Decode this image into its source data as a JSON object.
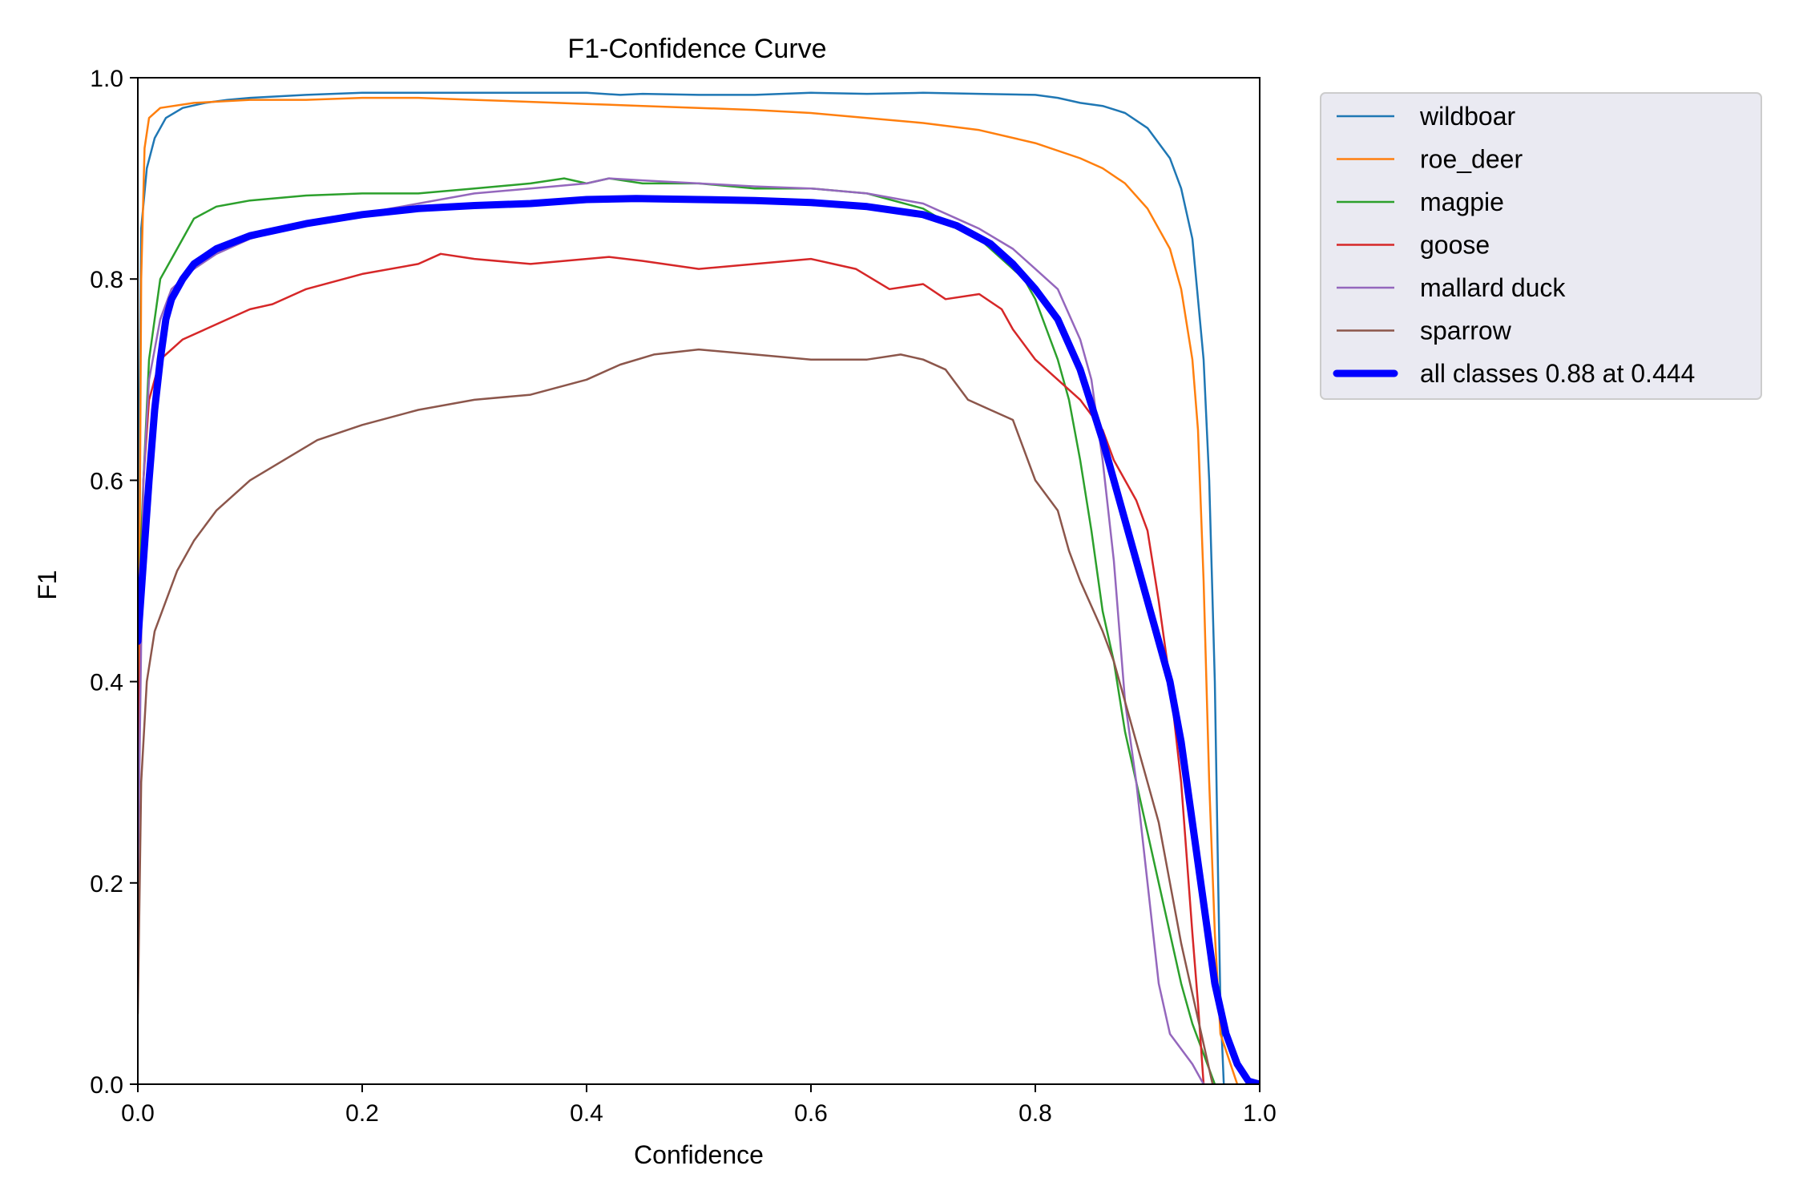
{
  "chart_data": {
    "type": "line",
    "title": "F1-Confidence Curve",
    "xlabel": "Confidence",
    "ylabel": "F1",
    "xlim": [
      0.0,
      1.0
    ],
    "ylim": [
      0.0,
      1.0
    ],
    "xticks": [
      "0.0",
      "0.2",
      "0.4",
      "0.6",
      "0.8",
      "1.0"
    ],
    "yticks": [
      "0.0",
      "0.2",
      "0.4",
      "0.6",
      "0.8",
      "1.0"
    ],
    "grid": false,
    "legend_position": "outside-upper-right",
    "series": [
      {
        "name": "wildboar",
        "color": "#1f77b4",
        "points": [
          [
            0.0,
            0.5
          ],
          [
            0.003,
            0.85
          ],
          [
            0.008,
            0.91
          ],
          [
            0.015,
            0.94
          ],
          [
            0.025,
            0.96
          ],
          [
            0.04,
            0.97
          ],
          [
            0.06,
            0.975
          ],
          [
            0.08,
            0.978
          ],
          [
            0.1,
            0.98
          ],
          [
            0.15,
            0.983
          ],
          [
            0.2,
            0.985
          ],
          [
            0.3,
            0.985
          ],
          [
            0.4,
            0.985
          ],
          [
            0.43,
            0.983
          ],
          [
            0.45,
            0.984
          ],
          [
            0.5,
            0.983
          ],
          [
            0.55,
            0.983
          ],
          [
            0.6,
            0.985
          ],
          [
            0.65,
            0.984
          ],
          [
            0.7,
            0.985
          ],
          [
            0.75,
            0.984
          ],
          [
            0.8,
            0.983
          ],
          [
            0.82,
            0.98
          ],
          [
            0.84,
            0.975
          ],
          [
            0.86,
            0.972
          ],
          [
            0.88,
            0.965
          ],
          [
            0.9,
            0.95
          ],
          [
            0.92,
            0.92
          ],
          [
            0.93,
            0.89
          ],
          [
            0.94,
            0.84
          ],
          [
            0.945,
            0.78
          ],
          [
            0.95,
            0.72
          ],
          [
            0.955,
            0.6
          ],
          [
            0.96,
            0.4
          ],
          [
            0.963,
            0.2
          ],
          [
            0.965,
            0.08
          ],
          [
            0.968,
            0.0
          ]
        ]
      },
      {
        "name": "roe_deer",
        "color": "#ff7f0e",
        "points": [
          [
            0.0,
            0.2
          ],
          [
            0.003,
            0.8
          ],
          [
            0.006,
            0.93
          ],
          [
            0.01,
            0.96
          ],
          [
            0.02,
            0.97
          ],
          [
            0.05,
            0.975
          ],
          [
            0.1,
            0.978
          ],
          [
            0.15,
            0.978
          ],
          [
            0.2,
            0.98
          ],
          [
            0.25,
            0.98
          ],
          [
            0.3,
            0.978
          ],
          [
            0.35,
            0.976
          ],
          [
            0.4,
            0.974
          ],
          [
            0.45,
            0.972
          ],
          [
            0.5,
            0.97
          ],
          [
            0.55,
            0.968
          ],
          [
            0.6,
            0.965
          ],
          [
            0.65,
            0.96
          ],
          [
            0.7,
            0.955
          ],
          [
            0.75,
            0.948
          ],
          [
            0.8,
            0.935
          ],
          [
            0.84,
            0.92
          ],
          [
            0.86,
            0.91
          ],
          [
            0.88,
            0.895
          ],
          [
            0.9,
            0.87
          ],
          [
            0.92,
            0.83
          ],
          [
            0.93,
            0.79
          ],
          [
            0.94,
            0.72
          ],
          [
            0.945,
            0.65
          ],
          [
            0.95,
            0.5
          ],
          [
            0.955,
            0.3
          ],
          [
            0.96,
            0.15
          ],
          [
            0.965,
            0.05
          ],
          [
            0.98,
            0.0
          ]
        ]
      },
      {
        "name": "magpie",
        "color": "#2ca02c",
        "points": [
          [
            0.0,
            0.45
          ],
          [
            0.005,
            0.6
          ],
          [
            0.01,
            0.72
          ],
          [
            0.02,
            0.8
          ],
          [
            0.03,
            0.82
          ],
          [
            0.04,
            0.84
          ],
          [
            0.05,
            0.86
          ],
          [
            0.07,
            0.872
          ],
          [
            0.1,
            0.878
          ],
          [
            0.15,
            0.883
          ],
          [
            0.2,
            0.885
          ],
          [
            0.25,
            0.885
          ],
          [
            0.3,
            0.89
          ],
          [
            0.35,
            0.895
          ],
          [
            0.38,
            0.9
          ],
          [
            0.4,
            0.895
          ],
          [
            0.42,
            0.9
          ],
          [
            0.45,
            0.895
          ],
          [
            0.5,
            0.895
          ],
          [
            0.55,
            0.89
          ],
          [
            0.6,
            0.89
          ],
          [
            0.65,
            0.885
          ],
          [
            0.7,
            0.87
          ],
          [
            0.73,
            0.85
          ],
          [
            0.75,
            0.84
          ],
          [
            0.77,
            0.82
          ],
          [
            0.79,
            0.8
          ],
          [
            0.8,
            0.78
          ],
          [
            0.81,
            0.75
          ],
          [
            0.82,
            0.72
          ],
          [
            0.83,
            0.68
          ],
          [
            0.84,
            0.62
          ],
          [
            0.85,
            0.55
          ],
          [
            0.86,
            0.47
          ],
          [
            0.87,
            0.42
          ],
          [
            0.88,
            0.35
          ],
          [
            0.89,
            0.3
          ],
          [
            0.9,
            0.25
          ],
          [
            0.91,
            0.2
          ],
          [
            0.92,
            0.15
          ],
          [
            0.93,
            0.1
          ],
          [
            0.94,
            0.06
          ],
          [
            0.95,
            0.03
          ],
          [
            0.96,
            0.0
          ]
        ]
      },
      {
        "name": "goose",
        "color": "#d62728",
        "points": [
          [
            0.0,
            0.3
          ],
          [
            0.005,
            0.6
          ],
          [
            0.01,
            0.68
          ],
          [
            0.02,
            0.72
          ],
          [
            0.04,
            0.74
          ],
          [
            0.06,
            0.75
          ],
          [
            0.08,
            0.76
          ],
          [
            0.1,
            0.77
          ],
          [
            0.12,
            0.775
          ],
          [
            0.15,
            0.79
          ],
          [
            0.2,
            0.805
          ],
          [
            0.25,
            0.815
          ],
          [
            0.27,
            0.825
          ],
          [
            0.3,
            0.82
          ],
          [
            0.35,
            0.815
          ],
          [
            0.4,
            0.82
          ],
          [
            0.42,
            0.822
          ],
          [
            0.45,
            0.818
          ],
          [
            0.5,
            0.81
          ],
          [
            0.55,
            0.815
          ],
          [
            0.6,
            0.82
          ],
          [
            0.62,
            0.815
          ],
          [
            0.64,
            0.81
          ],
          [
            0.67,
            0.79
          ],
          [
            0.7,
            0.795
          ],
          [
            0.72,
            0.78
          ],
          [
            0.75,
            0.785
          ],
          [
            0.77,
            0.77
          ],
          [
            0.78,
            0.75
          ],
          [
            0.8,
            0.72
          ],
          [
            0.82,
            0.7
          ],
          [
            0.84,
            0.68
          ],
          [
            0.86,
            0.65
          ],
          [
            0.87,
            0.62
          ],
          [
            0.88,
            0.6
          ],
          [
            0.89,
            0.58
          ],
          [
            0.9,
            0.55
          ],
          [
            0.91,
            0.48
          ],
          [
            0.92,
            0.4
          ],
          [
            0.93,
            0.3
          ],
          [
            0.94,
            0.15
          ],
          [
            0.945,
            0.08
          ],
          [
            0.95,
            0.0
          ]
        ]
      },
      {
        "name": "mallard duck",
        "color": "#9467bd",
        "points": [
          [
            0.0,
            0.2
          ],
          [
            0.005,
            0.6
          ],
          [
            0.01,
            0.7
          ],
          [
            0.02,
            0.76
          ],
          [
            0.03,
            0.79
          ],
          [
            0.05,
            0.81
          ],
          [
            0.07,
            0.825
          ],
          [
            0.1,
            0.84
          ],
          [
            0.15,
            0.855
          ],
          [
            0.2,
            0.865
          ],
          [
            0.25,
            0.875
          ],
          [
            0.3,
            0.885
          ],
          [
            0.35,
            0.89
          ],
          [
            0.4,
            0.895
          ],
          [
            0.42,
            0.9
          ],
          [
            0.45,
            0.898
          ],
          [
            0.5,
            0.895
          ],
          [
            0.55,
            0.892
          ],
          [
            0.6,
            0.89
          ],
          [
            0.65,
            0.885
          ],
          [
            0.7,
            0.875
          ],
          [
            0.73,
            0.86
          ],
          [
            0.75,
            0.85
          ],
          [
            0.78,
            0.83
          ],
          [
            0.8,
            0.81
          ],
          [
            0.82,
            0.79
          ],
          [
            0.84,
            0.74
          ],
          [
            0.85,
            0.7
          ],
          [
            0.86,
            0.62
          ],
          [
            0.87,
            0.52
          ],
          [
            0.875,
            0.45
          ],
          [
            0.88,
            0.38
          ],
          [
            0.89,
            0.3
          ],
          [
            0.9,
            0.2
          ],
          [
            0.91,
            0.1
          ],
          [
            0.92,
            0.05
          ],
          [
            0.94,
            0.02
          ],
          [
            0.95,
            0.0
          ]
        ]
      },
      {
        "name": "sparrow",
        "color": "#8c564b",
        "points": [
          [
            0.0,
            0.07
          ],
          [
            0.003,
            0.3
          ],
          [
            0.008,
            0.4
          ],
          [
            0.015,
            0.45
          ],
          [
            0.025,
            0.48
          ],
          [
            0.035,
            0.51
          ],
          [
            0.05,
            0.54
          ],
          [
            0.07,
            0.57
          ],
          [
            0.1,
            0.6
          ],
          [
            0.13,
            0.62
          ],
          [
            0.16,
            0.64
          ],
          [
            0.2,
            0.655
          ],
          [
            0.25,
            0.67
          ],
          [
            0.3,
            0.68
          ],
          [
            0.35,
            0.685
          ],
          [
            0.4,
            0.7
          ],
          [
            0.43,
            0.715
          ],
          [
            0.46,
            0.725
          ],
          [
            0.5,
            0.73
          ],
          [
            0.55,
            0.725
          ],
          [
            0.6,
            0.72
          ],
          [
            0.65,
            0.72
          ],
          [
            0.68,
            0.725
          ],
          [
            0.7,
            0.72
          ],
          [
            0.72,
            0.71
          ],
          [
            0.74,
            0.68
          ],
          [
            0.76,
            0.67
          ],
          [
            0.78,
            0.66
          ],
          [
            0.79,
            0.63
          ],
          [
            0.8,
            0.6
          ],
          [
            0.82,
            0.57
          ],
          [
            0.83,
            0.53
          ],
          [
            0.84,
            0.5
          ],
          [
            0.86,
            0.45
          ],
          [
            0.87,
            0.42
          ],
          [
            0.88,
            0.38
          ],
          [
            0.89,
            0.34
          ],
          [
            0.9,
            0.3
          ],
          [
            0.91,
            0.26
          ],
          [
            0.92,
            0.2
          ],
          [
            0.93,
            0.14
          ],
          [
            0.94,
            0.09
          ],
          [
            0.95,
            0.04
          ],
          [
            0.958,
            0.0
          ]
        ]
      },
      {
        "name": "all classes 0.88 at 0.444",
        "color": "#0000ff",
        "bold": true,
        "points": [
          [
            0.0,
            0.44
          ],
          [
            0.005,
            0.52
          ],
          [
            0.01,
            0.6
          ],
          [
            0.015,
            0.67
          ],
          [
            0.02,
            0.72
          ],
          [
            0.025,
            0.76
          ],
          [
            0.03,
            0.78
          ],
          [
            0.04,
            0.8
          ],
          [
            0.05,
            0.815
          ],
          [
            0.07,
            0.83
          ],
          [
            0.1,
            0.843
          ],
          [
            0.15,
            0.855
          ],
          [
            0.2,
            0.864
          ],
          [
            0.25,
            0.87
          ],
          [
            0.3,
            0.873
          ],
          [
            0.35,
            0.875
          ],
          [
            0.4,
            0.879
          ],
          [
            0.444,
            0.88
          ],
          [
            0.5,
            0.879
          ],
          [
            0.55,
            0.878
          ],
          [
            0.6,
            0.876
          ],
          [
            0.65,
            0.872
          ],
          [
            0.7,
            0.864
          ],
          [
            0.73,
            0.853
          ],
          [
            0.76,
            0.835
          ],
          [
            0.78,
            0.815
          ],
          [
            0.8,
            0.79
          ],
          [
            0.82,
            0.76
          ],
          [
            0.84,
            0.71
          ],
          [
            0.86,
            0.64
          ],
          [
            0.88,
            0.56
          ],
          [
            0.9,
            0.48
          ],
          [
            0.92,
            0.4
          ],
          [
            0.93,
            0.34
          ],
          [
            0.94,
            0.26
          ],
          [
            0.95,
            0.18
          ],
          [
            0.96,
            0.1
          ],
          [
            0.97,
            0.05
          ],
          [
            0.98,
            0.02
          ],
          [
            0.99,
            0.003
          ],
          [
            1.0,
            0.0
          ]
        ]
      }
    ]
  }
}
